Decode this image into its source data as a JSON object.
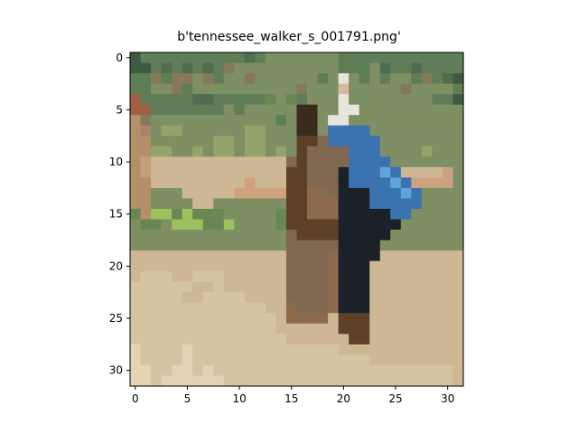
{
  "chart_data": {
    "type": "heatmap",
    "title": "b'tennessee_walker_s_001791.png'",
    "image_shape": [
      32,
      32
    ],
    "xlim": [
      -0.5,
      31.5
    ],
    "ylim": [
      31.5,
      -0.5
    ],
    "x_ticks": [
      0,
      5,
      10,
      15,
      20,
      25,
      30
    ],
    "y_ticks": [
      0,
      5,
      10,
      15,
      20,
      25,
      30
    ],
    "x_tick_labels": [
      "0",
      "5",
      "10",
      "15",
      "20",
      "25",
      "30"
    ],
    "y_tick_labels": [
      "0",
      "5",
      "10",
      "15",
      "20",
      "25",
      "30"
    ],
    "grid": false,
    "palette": {
      "B": "#b4a98a",
      "G": "#5f7e57",
      "D": "#3e5a41",
      "T": "#b48f68",
      "L": "#94a26c",
      "R": "#a0603f",
      "K": "#3b2b1e",
      "W": "#e6e6dc",
      "S": "#cdb794",
      "C": "#d5c4a2",
      "V": "#e3d3b4",
      "N": "#5d4026",
      "H": "#816951",
      "E": "#3a73b0",
      "M": "#1b2129",
      "Y": "#9cc15c",
      "P": "#86795a",
      "A": "#d8b8a0",
      "F": "#8d6a4b",
      "O": "#c49f78",
      "Q": "#6a8653",
      "U": "#a6866a",
      "I": "#60a5d8",
      "Z": "#cfa27f",
      "X": "#7e8f63",
      "J": "#506d4f"
    },
    "pixel_rows": [
      "DGGGGGGGGGGJGXXXXXXXGGGGGGGGGGGG",
      "DDGJGJGJGPXXXXXXXXXXGGGXJGGJGGGG",
      "GGPGPPXPGXXPXXXXXXGXWXGXGXXGPGJD",
      "GGXXPGXXXXXXXXXXPXXXAXXXXXPXXXXG",
      "RGGGGGJJGGGGGQXQGXXXWXXXXXXXXGGD",
      "RRGGGGGGGXGXXXXXKKXXWWXXXXXXXXXX",
      "TPXXXXXXXXXXXXGXKKXWWXXXXXXXXXXX",
      "TUXLLXXXXXXLLXXXKKXEEEEXXXXXXXXX",
      "TTXXXXXXLLXLLXXXNNHEEEEEXXXXXXXX",
      "TTLLXXLXLLXLLXLXNHHHHEEEXXXXLXXX",
      "TOSSSSSSSSSSSSSHNHHHHEEEEXXXXXXX",
      "TOSSSSSSSSSSSSSNNHHHMEEEIESSSSZX",
      "TTSSSSSSSSSZSSSNNHHHMEEEEIEZZZZX",
      "TTXXXSSSSSZZZZZNNFFHMMMEEEIEXXXX",
      "TTXXXXSSXXXXXXXNNFFFMMMEEEEEXXXX",
      "QTYYQYQQQXXXXXQNNFFFMMMMMEEXXXXX",
      "XQQXYYYQQYXXXXQNNNNNMMMMMMXXXXXX",
      "XXXXXXXXXXXXXXXHNNNNMMMMMXXXXXXX",
      "XXXXXXXXXXXXXXXHHHHHMMMMXXXXXXXX",
      "SSSSSSSSSSSSSSSHHHHFMMMMSSSSSSSS",
      "SSSSSSSSSSSSSSSHHHHFMMMSSSSSSSSS",
      "SCCCSSCCCSSSSSSHHHHFMMMSSSSSSSSS",
      "CCCCCCSSCSSSSSSHHHHFMMMSSSSSSSSS",
      "CCCCCSSCCCCSSSSHHHHFMMMSSSSSSSSS",
      "CCCCCCCCCCCCCSSFHHHFMMMSSSSSSSSS",
      "CCCCCCCCCCCCCCSFFFFSNNNSSSSSSSSS",
      "CCCCCCCCCCCCCCSSSSSSNNNSSSSSSSSS",
      "CCCCCCCCCCCCCCCSSSSSSNNSSSSSSSSS",
      "VCCCCVCCCCCCCCCCCCCCSSSSSSSSSSSS",
      "VCCCCVCCCCCCCCCCCCCCCCCSSSSSSSSS",
      "VVCCVVCVCCCCCCCCCCCCCCCCCCCCCCCS",
      "VVCVVVVVVCCCCCCCCCCCCCCCCCCCCCCS"
    ]
  }
}
